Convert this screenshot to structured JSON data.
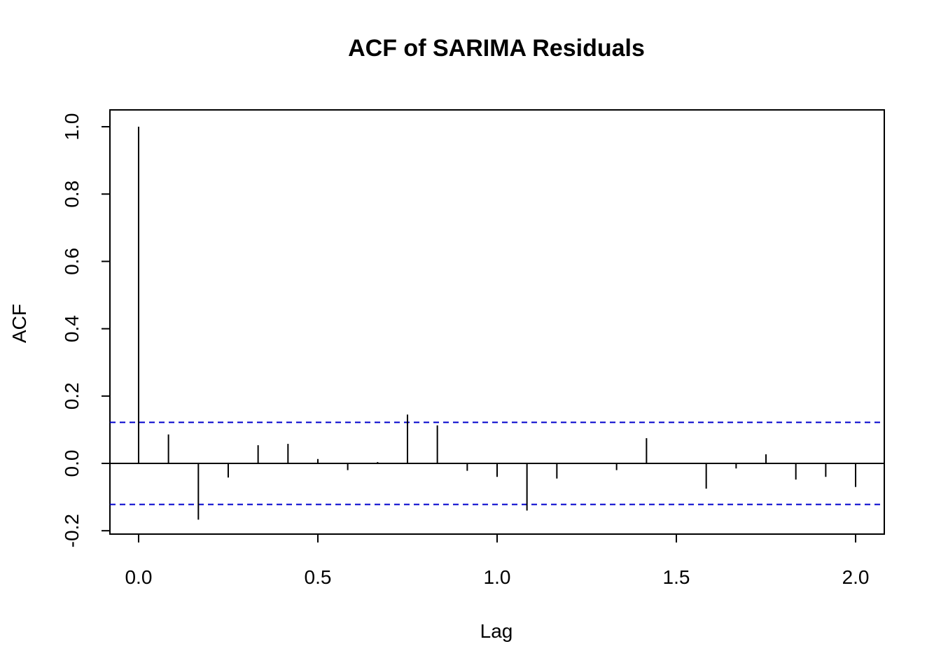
{
  "chart_data": {
    "type": "bar",
    "title": "ACF of SARIMA Residuals",
    "xlabel": "Lag",
    "ylabel": "ACF",
    "xlim": [
      -0.08,
      2.08
    ],
    "ylim": [
      -0.21,
      1.05
    ],
    "x_ticks": [
      0.0,
      0.5,
      1.0,
      1.5,
      2.0
    ],
    "x_tick_labels": [
      "0.0",
      "0.5",
      "1.0",
      "1.5",
      "2.0"
    ],
    "y_ticks": [
      -0.2,
      0.0,
      0.2,
      0.4,
      0.6,
      0.8,
      1.0
    ],
    "y_tick_labels": [
      "-0.2",
      "0.0",
      "0.2",
      "0.4",
      "0.6",
      "0.8",
      "1.0"
    ],
    "confidence_bound": 0.122,
    "confidence_color": "#0000cc",
    "series": [
      {
        "lags": [
          0.0,
          0.0833,
          0.1667,
          0.25,
          0.3333,
          0.4167,
          0.5,
          0.5833,
          0.6667,
          0.75,
          0.8333,
          0.9167,
          1.0,
          1.0833,
          1.1667,
          1.25,
          1.3333,
          1.4167,
          1.5,
          1.5833,
          1.6667,
          1.75,
          1.8333,
          1.9167,
          2.0
        ],
        "values": [
          1.0,
          0.086,
          -0.167,
          -0.042,
          0.054,
          0.058,
          0.013,
          -0.02,
          0.004,
          0.145,
          0.113,
          -0.022,
          -0.04,
          -0.14,
          -0.045,
          0.0,
          -0.02,
          0.075,
          0.0,
          -0.075,
          -0.015,
          0.027,
          -0.048,
          -0.04,
          -0.07
        ]
      }
    ]
  }
}
